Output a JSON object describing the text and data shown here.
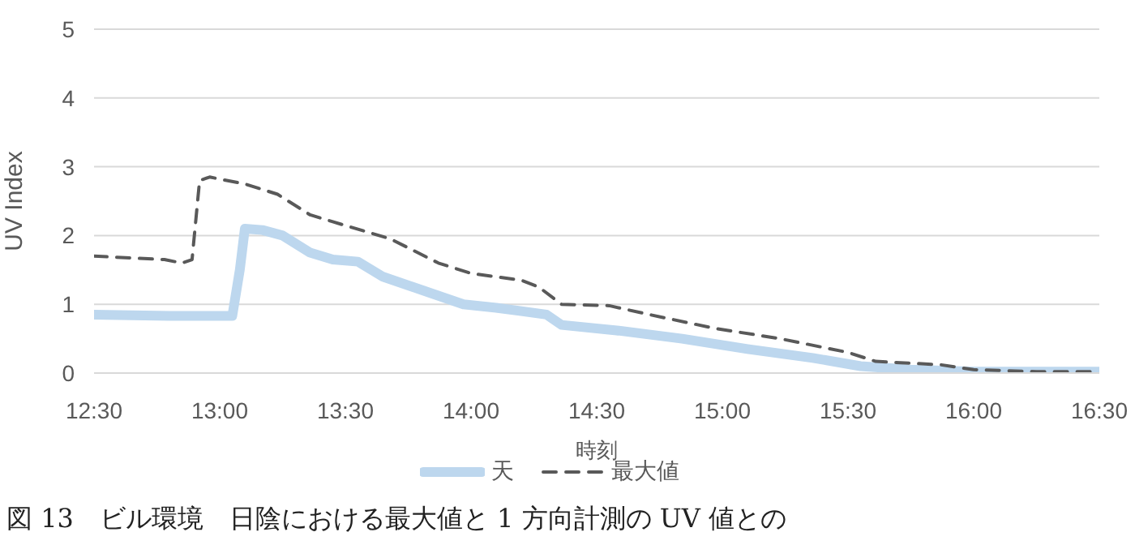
{
  "chart_data": {
    "type": "line",
    "xlabel": "時刻",
    "ylabel": "UV Index",
    "annotations": [
      "図 13　ビル環境　日陰における最大値と 1 方向計測の UV 値との"
    ],
    "xlim": [
      12.5,
      16.5
    ],
    "xticks": [
      {
        "value": 12.5,
        "label": "12:30"
      },
      {
        "value": 13,
        "label": "13:00"
      },
      {
        "value": 13.5,
        "label": "13:30"
      },
      {
        "value": 14,
        "label": "14:00"
      },
      {
        "value": 14.5,
        "label": "14:30"
      },
      {
        "value": 15,
        "label": "15:00"
      },
      {
        "value": 15.5,
        "label": "15:30"
      },
      {
        "value": 16,
        "label": "16:00"
      },
      {
        "value": 16.5,
        "label": "16:30"
      }
    ],
    "ylim": [
      0,
      5
    ],
    "yticks": [
      0,
      1,
      2,
      3,
      4,
      5
    ],
    "grid": "y",
    "legend": "bottom",
    "marker": "none",
    "series": [
      {
        "name": "天",
        "color": "#bdd7ee",
        "line_style": "solid",
        "x": [
          12.5,
          12.8,
          13.05,
          13.08,
          13.1,
          13.17,
          13.25,
          13.36,
          13.45,
          13.55,
          13.65,
          13.81,
          13.97,
          14.1,
          14.2,
          14.3,
          14.36,
          14.58,
          14.84,
          15.1,
          15.36,
          15.55,
          15.75,
          16.0,
          16.5
        ],
        "values": [
          0.85,
          0.83,
          0.83,
          1.5,
          2.1,
          2.08,
          2.0,
          1.75,
          1.65,
          1.62,
          1.4,
          1.2,
          1.0,
          0.95,
          0.9,
          0.85,
          0.7,
          0.62,
          0.5,
          0.35,
          0.22,
          0.1,
          0.05,
          0.02,
          0.02
        ]
      },
      {
        "name": "最大値",
        "color": "#595959",
        "line_style": "dashed",
        "x": [
          12.5,
          12.78,
          12.85,
          12.89,
          12.92,
          12.96,
          13.1,
          13.23,
          13.36,
          13.45,
          13.68,
          13.87,
          14.0,
          14.2,
          14.27,
          14.36,
          14.55,
          14.71,
          14.97,
          15.23,
          15.5,
          15.61,
          15.87,
          16.0,
          16.25,
          16.5
        ],
        "values": [
          1.7,
          1.65,
          1.6,
          1.65,
          2.8,
          2.85,
          2.75,
          2.6,
          2.3,
          2.2,
          1.95,
          1.6,
          1.45,
          1.35,
          1.25,
          1.0,
          0.98,
          0.85,
          0.65,
          0.5,
          0.3,
          0.17,
          0.12,
          0.05,
          0.02,
          0.02
        ]
      }
    ]
  }
}
